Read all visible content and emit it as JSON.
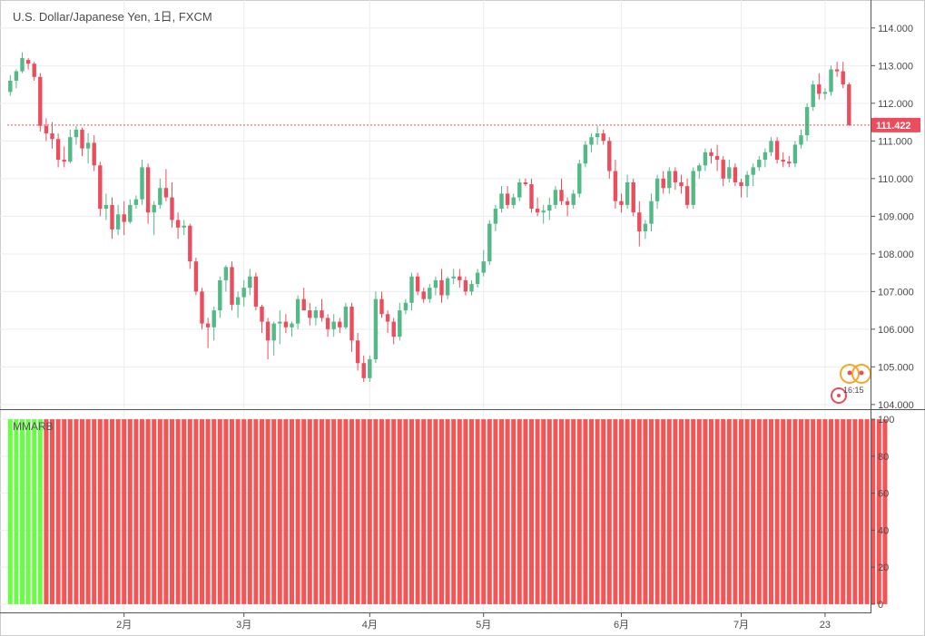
{
  "header": {
    "title": "U.S. Dollar/Japanese Yen, 1日, FXCM"
  },
  "indicator": {
    "label": "MMARB"
  },
  "price_tag": "111.422",
  "badge_text": "16:15",
  "colors": {
    "up": "#53b987",
    "down": "#eb4d5c",
    "ind_bull": "#66ff44",
    "ind_bear": "#f65454",
    "ind_bull_dark": "#4f9a4f",
    "ind_bear_dark": "#a84b4b",
    "grid": "#e9edf1",
    "axis": "#555555",
    "price_line": "#eb4d5c"
  },
  "chart_data": [
    {
      "type": "candlestick",
      "title": "U.S. Dollar/Japanese Yen, 1日, FXCM",
      "y_ticks": [
        "104.000",
        "105.000",
        "106.000",
        "107.000",
        "108.000",
        "109.000",
        "110.000",
        "111.000",
        "112.000",
        "113.000",
        "114.000"
      ],
      "ylim": [
        103.9,
        114.55
      ],
      "x_ticks": [
        {
          "label": "2月",
          "index": 19
        },
        {
          "label": "3月",
          "index": 39
        },
        {
          "label": "4月",
          "index": 60
        },
        {
          "label": "5月",
          "index": 79
        },
        {
          "label": "6月",
          "index": 102
        },
        {
          "label": "7月",
          "index": 122
        },
        {
          "label": "23",
          "index": 136
        }
      ],
      "last_price": 111.422,
      "candles": [
        [
          112.3,
          112.75,
          112.2,
          112.6
        ],
        [
          112.6,
          112.9,
          112.4,
          112.85
        ],
        [
          112.85,
          113.35,
          112.8,
          113.2
        ],
        [
          113.15,
          113.2,
          112.9,
          113.05
        ],
        [
          113.05,
          113.1,
          112.6,
          112.7
        ],
        [
          112.7,
          112.8,
          111.25,
          111.4
        ],
        [
          111.4,
          111.6,
          111.0,
          111.2
        ],
        [
          111.2,
          111.5,
          110.8,
          111.05
        ],
        [
          111.05,
          111.2,
          110.3,
          110.5
        ],
        [
          110.5,
          110.85,
          110.3,
          110.45
        ],
        [
          110.45,
          111.3,
          110.4,
          111.1
        ],
        [
          111.1,
          111.4,
          110.9,
          111.3
        ],
        [
          111.3,
          111.35,
          110.6,
          110.8
        ],
        [
          110.8,
          111.2,
          110.4,
          110.95
        ],
        [
          110.95,
          111.15,
          110.2,
          110.35
        ],
        [
          110.35,
          110.45,
          109.0,
          109.2
        ],
        [
          109.2,
          109.6,
          108.9,
          109.3
        ],
        [
          109.3,
          109.5,
          108.4,
          108.65
        ],
        [
          108.65,
          109.3,
          108.5,
          109.05
        ],
        [
          109.05,
          109.4,
          108.5,
          108.85
        ],
        [
          108.85,
          109.45,
          108.8,
          109.3
        ],
        [
          109.3,
          109.55,
          109.2,
          109.45
        ],
        [
          109.45,
          110.5,
          109.3,
          110.3
        ],
        [
          110.3,
          110.4,
          108.8,
          109.1
        ],
        [
          109.1,
          109.4,
          108.5,
          109.3
        ],
        [
          109.3,
          110.0,
          109.2,
          109.75
        ],
        [
          109.75,
          110.25,
          109.4,
          109.5
        ],
        [
          109.5,
          109.9,
          108.7,
          108.9
        ],
        [
          108.9,
          109.1,
          108.4,
          108.7
        ],
        [
          108.7,
          108.9,
          108.5,
          108.75
        ],
        [
          108.75,
          108.8,
          107.6,
          107.8
        ],
        [
          107.8,
          107.9,
          106.9,
          107.0
        ],
        [
          107.0,
          107.1,
          106.0,
          106.15
        ],
        [
          106.15,
          106.3,
          105.5,
          106.05
        ],
        [
          106.05,
          106.6,
          105.7,
          106.5
        ],
        [
          106.5,
          107.4,
          106.3,
          107.3
        ],
        [
          107.3,
          107.7,
          107.0,
          107.65
        ],
        [
          107.65,
          107.8,
          106.5,
          106.65
        ],
        [
          106.65,
          107.0,
          106.3,
          106.85
        ],
        [
          106.85,
          107.3,
          106.6,
          107.1
        ],
        [
          107.1,
          107.6,
          106.9,
          107.4
        ],
        [
          107.4,
          107.5,
          106.5,
          106.6
        ],
        [
          106.6,
          106.65,
          105.9,
          106.2
        ],
        [
          106.2,
          106.3,
          105.2,
          105.7
        ],
        [
          105.7,
          106.2,
          105.3,
          106.15
        ],
        [
          106.15,
          106.5,
          105.6,
          106.2
        ],
        [
          106.2,
          106.4,
          105.9,
          106.05
        ],
        [
          106.05,
          106.2,
          105.8,
          106.15
        ],
        [
          106.15,
          106.9,
          106.0,
          106.8
        ],
        [
          106.8,
          107.1,
          106.5,
          106.5
        ],
        [
          106.5,
          106.7,
          106.1,
          106.3
        ],
        [
          106.3,
          106.6,
          106.1,
          106.5
        ],
        [
          106.5,
          106.8,
          106.2,
          106.3
        ],
        [
          106.3,
          106.4,
          105.8,
          106.0
        ],
        [
          106.0,
          106.4,
          105.8,
          106.2
        ],
        [
          106.2,
          106.3,
          105.9,
          106.05
        ],
        [
          106.05,
          106.7,
          106.0,
          106.6
        ],
        [
          106.6,
          106.7,
          105.4,
          105.7
        ],
        [
          105.7,
          105.9,
          104.9,
          105.1
        ],
        [
          105.1,
          105.3,
          104.6,
          104.7
        ],
        [
          104.7,
          105.3,
          104.6,
          105.2
        ],
        [
          105.2,
          107.0,
          105.1,
          106.8
        ],
        [
          106.8,
          107.0,
          106.3,
          106.4
        ],
        [
          106.4,
          106.5,
          105.9,
          106.2
        ],
        [
          106.2,
          106.3,
          105.6,
          105.8
        ],
        [
          105.8,
          106.7,
          105.7,
          106.5
        ],
        [
          106.5,
          106.8,
          106.4,
          106.7
        ],
        [
          106.7,
          107.5,
          106.5,
          107.4
        ],
        [
          107.4,
          107.5,
          106.9,
          107.0
        ],
        [
          107.0,
          107.1,
          106.7,
          106.8
        ],
        [
          106.8,
          107.2,
          106.7,
          107.1
        ],
        [
          107.1,
          107.4,
          106.9,
          107.3
        ],
        [
          107.3,
          107.6,
          106.7,
          106.9
        ],
        [
          106.9,
          107.4,
          106.8,
          107.35
        ],
        [
          107.35,
          107.6,
          107.2,
          107.4
        ],
        [
          107.4,
          107.6,
          107.1,
          107.3
        ],
        [
          107.3,
          107.4,
          106.9,
          107.0
        ],
        [
          107.0,
          107.3,
          106.9,
          107.2
        ],
        [
          107.2,
          107.6,
          107.1,
          107.5
        ],
        [
          107.5,
          108.1,
          107.4,
          107.8
        ],
        [
          107.8,
          108.9,
          107.7,
          108.8
        ],
        [
          108.8,
          109.3,
          108.6,
          109.2
        ],
        [
          109.2,
          109.8,
          109.1,
          109.6
        ],
        [
          109.6,
          109.8,
          109.2,
          109.3
        ],
        [
          109.3,
          109.6,
          109.2,
          109.5
        ],
        [
          109.5,
          110.0,
          109.4,
          109.9
        ],
        [
          109.9,
          110.0,
          109.8,
          109.85
        ],
        [
          109.85,
          110.0,
          109.1,
          109.2
        ],
        [
          109.2,
          109.5,
          109.0,
          109.1
        ],
        [
          109.1,
          109.3,
          108.8,
          109.15
        ],
        [
          109.15,
          109.5,
          108.9,
          109.3
        ],
        [
          109.3,
          109.8,
          109.2,
          109.7
        ],
        [
          109.7,
          110.0,
          109.3,
          109.4
        ],
        [
          109.4,
          109.5,
          109.0,
          109.3
        ],
        [
          109.3,
          109.7,
          109.2,
          109.6
        ],
        [
          109.6,
          110.5,
          109.5,
          110.4
        ],
        [
          110.4,
          111.0,
          110.3,
          110.9
        ],
        [
          110.9,
          111.2,
          110.7,
          111.1
        ],
        [
          111.1,
          111.4,
          110.9,
          111.2
        ],
        [
          111.2,
          111.3,
          110.9,
          111.0
        ],
        [
          111.0,
          111.1,
          110.0,
          110.2
        ],
        [
          110.2,
          110.5,
          109.2,
          109.4
        ],
        [
          109.4,
          109.6,
          109.1,
          109.3
        ],
        [
          109.3,
          110.1,
          109.2,
          109.9
        ],
        [
          109.9,
          110.0,
          109.0,
          109.1
        ],
        [
          109.1,
          109.4,
          108.2,
          108.6
        ],
        [
          108.6,
          108.9,
          108.4,
          108.8
        ],
        [
          108.8,
          109.6,
          108.6,
          109.4
        ],
        [
          109.4,
          110.1,
          109.2,
          110.0
        ],
        [
          110.0,
          110.2,
          109.6,
          109.75
        ],
        [
          109.75,
          110.3,
          109.6,
          110.2
        ],
        [
          110.2,
          110.3,
          109.7,
          109.9
        ],
        [
          109.9,
          110.1,
          109.6,
          109.8
        ],
        [
          109.8,
          110.0,
          109.2,
          109.3
        ],
        [
          109.3,
          110.3,
          109.2,
          110.2
        ],
        [
          110.2,
          110.4,
          110.0,
          110.35
        ],
        [
          110.35,
          110.8,
          110.2,
          110.7
        ],
        [
          110.7,
          110.8,
          110.4,
          110.6
        ],
        [
          110.6,
          110.9,
          110.2,
          110.5
        ],
        [
          110.5,
          110.6,
          109.8,
          110.0
        ],
        [
          110.0,
          110.5,
          109.9,
          110.3
        ],
        [
          110.3,
          110.4,
          109.8,
          109.9
        ],
        [
          109.9,
          110.0,
          109.5,
          109.8
        ],
        [
          109.8,
          110.2,
          109.5,
          110.1
        ],
        [
          110.1,
          110.4,
          109.8,
          110.3
        ],
        [
          110.3,
          110.6,
          110.2,
          110.5
        ],
        [
          110.5,
          110.8,
          110.3,
          110.7
        ],
        [
          110.7,
          111.1,
          110.6,
          111.0
        ],
        [
          111.0,
          111.1,
          110.4,
          110.5
        ],
        [
          110.5,
          110.7,
          110.3,
          110.45
        ],
        [
          110.45,
          110.6,
          110.3,
          110.4
        ],
        [
          110.4,
          111.0,
          110.3,
          110.9
        ],
        [
          110.9,
          111.3,
          110.8,
          111.15
        ],
        [
          111.15,
          112.0,
          111.0,
          111.9
        ],
        [
          111.9,
          112.6,
          111.8,
          112.5
        ],
        [
          112.5,
          112.8,
          112.1,
          112.25
        ],
        [
          112.25,
          112.4,
          112.1,
          112.3
        ],
        [
          112.3,
          113.0,
          112.2,
          112.9
        ],
        [
          112.9,
          113.1,
          112.7,
          112.85
        ],
        [
          112.85,
          113.1,
          112.4,
          112.5
        ],
        [
          112.5,
          112.55,
          111.4,
          111.42
        ]
      ]
    },
    {
      "type": "bar",
      "title": "MMARB",
      "y_ticks": [
        "0",
        "20",
        "40",
        "60",
        "80",
        "100"
      ],
      "ylim": [
        -2,
        102
      ],
      "bear_values": [
        0,
        0,
        0,
        0,
        0,
        35,
        55,
        100,
        100,
        100,
        100,
        100,
        100,
        100,
        100,
        100,
        100,
        100,
        100,
        100,
        100,
        100,
        100,
        100,
        100,
        100,
        100,
        100,
        100,
        100,
        100,
        100,
        100,
        100,
        100,
        100,
        100,
        100,
        100,
        100,
        100,
        100,
        100,
        100,
        100,
        100,
        100,
        100,
        100,
        100,
        100,
        100,
        100,
        100,
        100,
        100,
        100,
        100,
        100,
        100,
        100,
        100,
        100,
        100,
        100,
        100,
        100,
        100,
        100,
        100,
        100,
        100,
        100,
        100,
        100,
        100,
        100,
        100,
        100,
        100,
        100,
        100,
        100,
        100,
        100,
        100,
        100,
        100,
        100,
        100,
        100,
        100,
        100,
        100,
        100,
        100,
        100,
        100,
        100,
        100,
        100,
        100,
        100,
        100,
        100,
        100,
        100,
        100,
        100,
        100,
        100,
        100,
        100,
        100,
        100,
        100,
        100,
        100,
        100,
        100,
        100,
        100,
        100,
        100,
        100,
        100,
        100,
        100,
        100,
        100,
        100,
        100,
        100,
        100,
        100,
        100,
        100,
        100,
        100,
        100,
        100,
        100,
        100,
        100,
        100,
        100,
        100
      ]
    }
  ]
}
